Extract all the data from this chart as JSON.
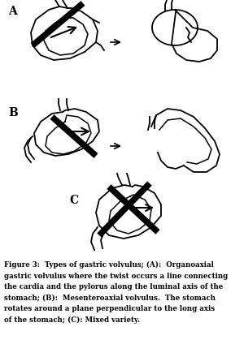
{
  "bg_color": "#ffffff",
  "label_A": "A",
  "label_B": "B",
  "label_C": "C",
  "line_color": "#000000",
  "fig_width": 3.0,
  "fig_height": 4.4,
  "dpi": 100,
  "caption_lines": [
    "Figure 3:  Types of gastric volvulus; (A):  Organoaxial",
    "gastric volvulus where the twist occurs a line connecting",
    "the cardia and the pylorus along the luminal axis of the",
    "stomach; (B):  Mesenteroaxial volvulus.  The stomach",
    "rotates around a plane perpendicular to the long axis",
    "of the stomach; (C): Mixed variety."
  ]
}
